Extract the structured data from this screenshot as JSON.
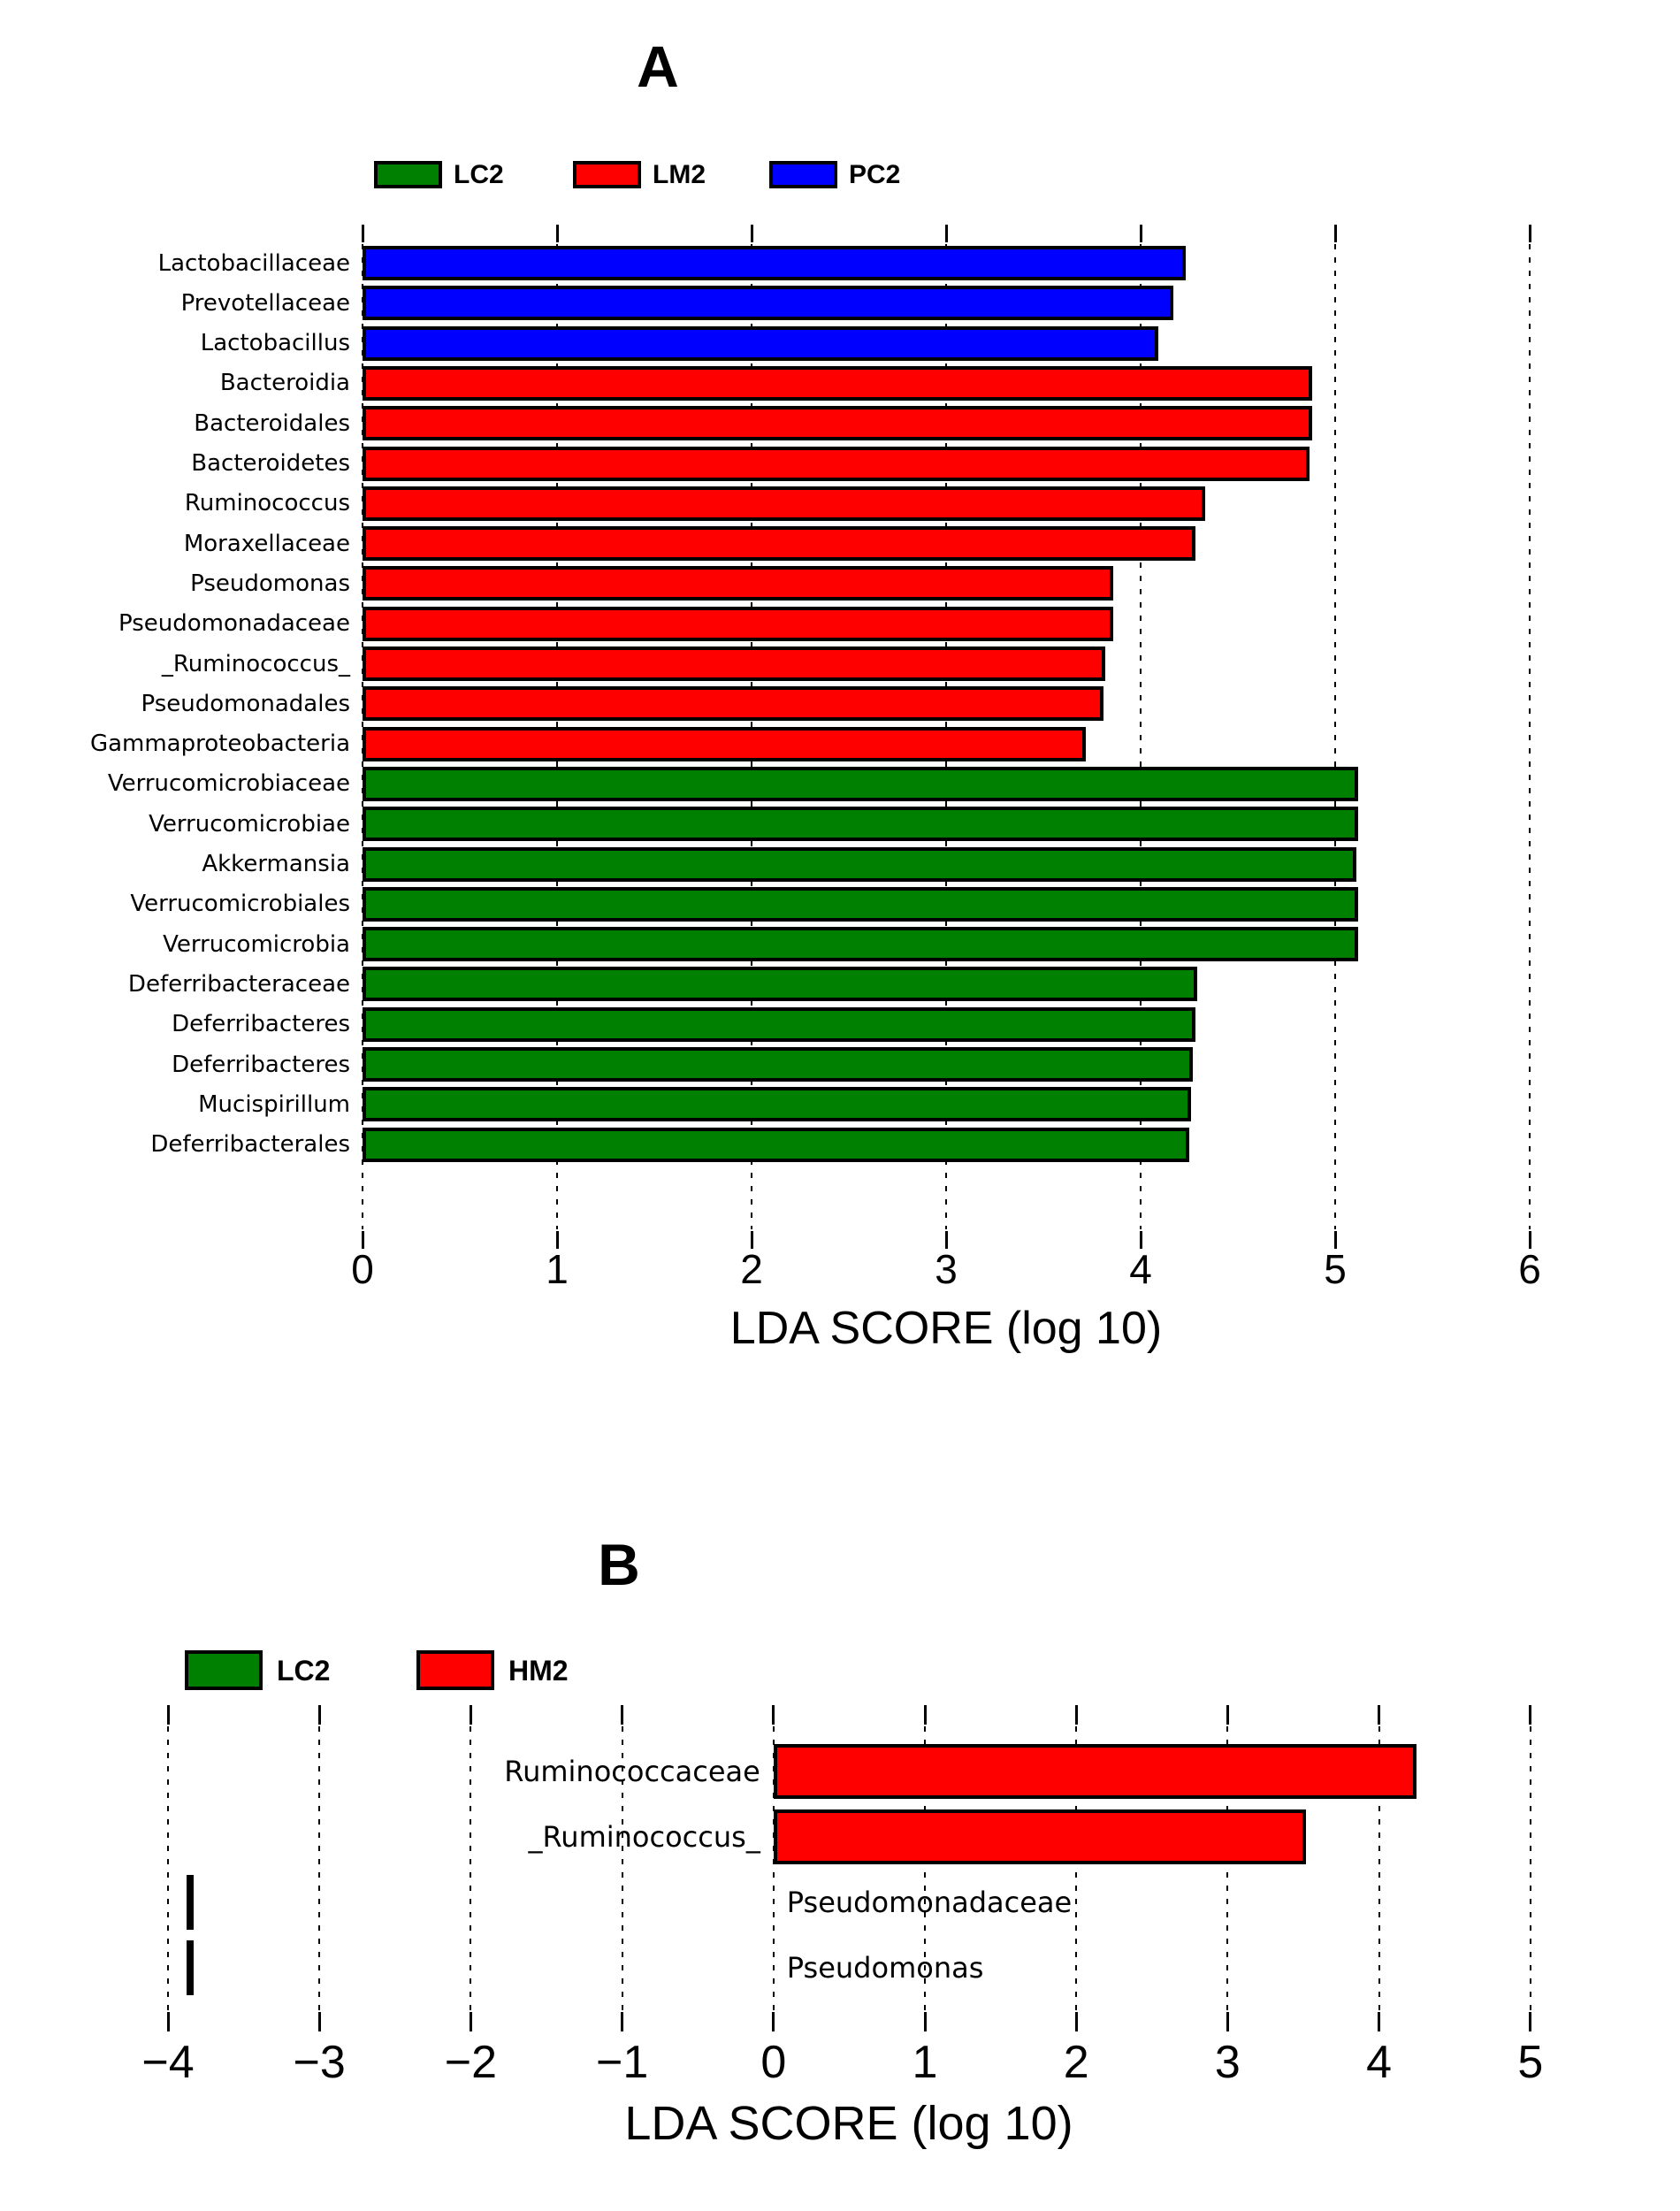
{
  "figure": {
    "background": "#ffffff",
    "axis_label": "LDA SCORE (log 10)"
  },
  "chart_data": [
    {
      "type": "bar",
      "panel_label": "A",
      "orientation": "horizontal",
      "xlabel": "LDA SCORE (log 10)",
      "xlim": [
        0,
        6
      ],
      "xticks": [
        0,
        1,
        2,
        3,
        4,
        5,
        6
      ],
      "grid": "dotted vertical gridlines at every integer",
      "legend_position": "top",
      "legend": [
        {
          "name": "LC2",
          "color": "#008000"
        },
        {
          "name": "LM2",
          "color": "#ff0000"
        },
        {
          "name": "PC2",
          "color": "#0000ff"
        }
      ],
      "bars": [
        {
          "category": "Lactobacillaceae",
          "group": "PC2",
          "value": 4.23
        },
        {
          "category": "Prevotellaceae",
          "group": "PC2",
          "value": 4.17
        },
        {
          "category": "Lactobacillus",
          "group": "PC2",
          "value": 4.09
        },
        {
          "category": "Bacteroidia",
          "group": "LM2",
          "value": 4.88
        },
        {
          "category": "Bacteroidales",
          "group": "LM2",
          "value": 4.88
        },
        {
          "category": "Bacteroidetes",
          "group": "LM2",
          "value": 4.87
        },
        {
          "category": "Ruminococcus",
          "group": "LM2",
          "value": 4.33
        },
        {
          "category": "Moraxellaceae",
          "group": "LM2",
          "value": 4.28
        },
        {
          "category": "Pseudomonas",
          "group": "LM2",
          "value": 3.86
        },
        {
          "category": "Pseudomonadaceae",
          "group": "LM2",
          "value": 3.86
        },
        {
          "category": "_Ruminococcus_",
          "group": "LM2",
          "value": 3.82
        },
        {
          "category": "Pseudomonadales",
          "group": "LM2",
          "value": 3.81
        },
        {
          "category": "Gammaproteobacteria",
          "group": "LM2",
          "value": 3.72
        },
        {
          "category": "Verrucomicrobiaceae",
          "group": "LC2",
          "value": 5.12
        },
        {
          "category": "Verrucomicrobiae",
          "group": "LC2",
          "value": 5.12
        },
        {
          "category": "Akkermansia",
          "group": "LC2",
          "value": 5.11
        },
        {
          "category": "Verrucomicrobiales",
          "group": "LC2",
          "value": 5.12
        },
        {
          "category": "Verrucomicrobia",
          "group": "LC2",
          "value": 5.12
        },
        {
          "category": "Deferribacteraceae",
          "group": "LC2",
          "value": 4.29
        },
        {
          "category": "Deferribacteres",
          "group": "LC2",
          "value": 4.28
        },
        {
          "category": "Deferribacteres",
          "group": "LC2",
          "value": 4.27
        },
        {
          "category": "Mucispirillum",
          "group": "LC2",
          "value": 4.26
        },
        {
          "category": "Deferribacterales",
          "group": "LC2",
          "value": 4.25
        }
      ]
    },
    {
      "type": "bar",
      "panel_label": "B",
      "orientation": "horizontal",
      "xlabel": "LDA SCORE (log 10)",
      "xlim": [
        -4,
        5
      ],
      "xticks": [
        -4,
        -3,
        -2,
        -1,
        0,
        1,
        2,
        3,
        4,
        5
      ],
      "grid": "dotted vertical gridlines at every integer",
      "legend_position": "top",
      "legend": [
        {
          "name": "LC2",
          "color": "#008000"
        },
        {
          "name": "HM2",
          "color": "#ff0000"
        }
      ],
      "bars": [
        {
          "category": "Ruminococcaceae",
          "group": "HM2",
          "value": 4.25
        },
        {
          "category": "_Ruminococcus_",
          "group": "HM2",
          "value": 3.52
        },
        {
          "category": "Pseudomonadaceae",
          "group": "LC2",
          "value": -3.88
        },
        {
          "category": "Pseudomonas",
          "group": "LC2",
          "value": -3.88
        }
      ]
    }
  ]
}
